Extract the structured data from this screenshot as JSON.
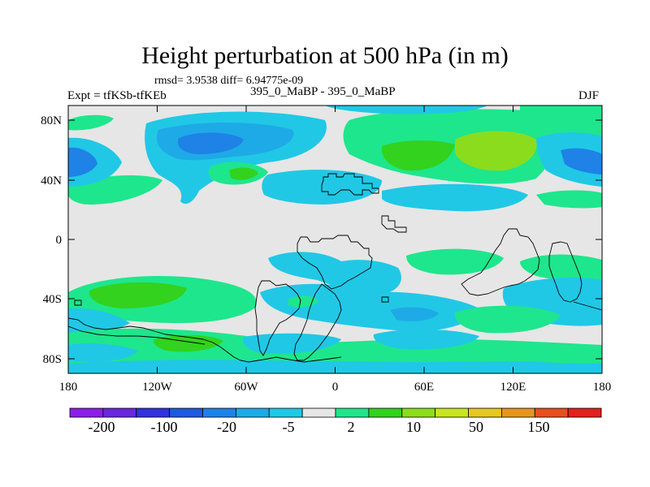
{
  "title": "Height perturbation at 500 hPa (in m)",
  "stats": "rmsd= 3.9538 diff= 6.94775e-09",
  "experiment": "Expt = tfKSb-tfKEb",
  "runs": "395_0_MaBP - 395_0_MaBP",
  "season": "DJF",
  "map": {
    "lat_ticks": [
      "80N",
      "40N",
      "0",
      "40S",
      "80S"
    ],
    "lon_ticks": [
      "180",
      "120W",
      "60W",
      "0",
      "60E",
      "120E",
      "180"
    ]
  },
  "colorbar": {
    "labels": [
      "-200",
      "-100",
      "-20",
      "-5",
      "2",
      "10",
      "50",
      "150"
    ],
    "colors": [
      "#8c1ee6",
      "#6a28dc",
      "#3232dc",
      "#1e5adc",
      "#1e82e6",
      "#1eaae6",
      "#20c8e6",
      "#e6e6e6",
      "#1ee68c",
      "#32d21e",
      "#8cdc1e",
      "#c8e61e",
      "#e6c81e",
      "#e6961e",
      "#e6501e",
      "#e61e1e"
    ],
    "background": "#e6e6e6"
  }
}
